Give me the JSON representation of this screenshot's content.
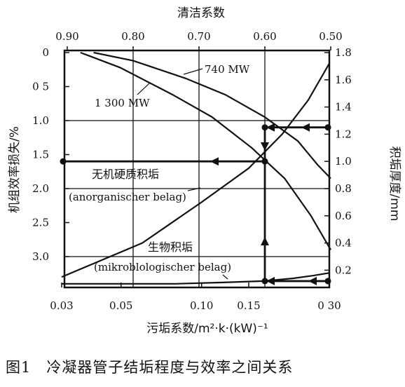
{
  "caption": "图1　冷凝器管子结垢程度与效率之间关系",
  "chart_data": {
    "type": "line",
    "title": "",
    "x_top": {
      "label": "清洁系数",
      "range": [
        0.9,
        0.5
      ],
      "ticks": [
        "0.90",
        "0.80",
        "0.70",
        "0.60",
        "0.50"
      ]
    },
    "x_bottom": {
      "label": "污垢系数/m²·k·(kW)⁻¹",
      "range": [
        0.03,
        0.3
      ],
      "ticks": [
        "0.03",
        "0.05",
        "0.10",
        "0.15",
        "0 30"
      ]
    },
    "y_left": {
      "label": "机组效率损失/%",
      "range": [
        0,
        3.4
      ],
      "ticks": [
        "0",
        "0 5",
        "1.0",
        "1.5",
        "2.0",
        "2.5",
        "3.0"
      ]
    },
    "y_right": {
      "label": "积垢厚度/mm",
      "range": [
        0.1,
        1.8
      ],
      "ticks": [
        "1.8",
        "1.6",
        "1.4",
        "1.2",
        "1.0",
        "0.8",
        "0.6",
        "0.4",
        "0.2"
      ]
    },
    "series": [
      {
        "name": "740 MW",
        "x_clean": [
          0.86,
          0.8,
          0.72,
          0.66,
          0.6,
          0.55,
          0.52,
          0.5
        ],
        "y_loss": [
          0.0,
          0.12,
          0.38,
          0.62,
          0.95,
          1.3,
          1.65,
          1.85
        ]
      },
      {
        "name": "1 300 MW",
        "x_clean": [
          0.88,
          0.82,
          0.74,
          0.68,
          0.62,
          0.57,
          0.53,
          0.5
        ],
        "y_loss": [
          0.0,
          0.22,
          0.62,
          0.95,
          1.4,
          1.85,
          2.4,
          2.9
        ]
      },
      {
        "name": "无机硬质积垢 (anorganischer belag)",
        "x_fouling": [
          0.03,
          0.06,
          0.1,
          0.15,
          0.2,
          0.25,
          0.3
        ],
        "y_thickness": [
          0.15,
          0.4,
          0.7,
          0.95,
          1.2,
          1.45,
          1.72
        ]
      },
      {
        "name": "生物积垢 (mikroblologischer belag)",
        "x_fouling": [
          0.03,
          0.08,
          0.12,
          0.17,
          0.22,
          0.26,
          0.3
        ],
        "y_thickness": [
          0.1,
          0.1,
          0.11,
          0.12,
          0.14,
          0.16,
          0.18
        ]
      }
    ],
    "annotations": [
      {
        "text": "740 MW"
      },
      {
        "text": "1 300 MW"
      },
      {
        "text": "无机硬质积垢"
      },
      {
        "text": "(anorganischer belag)"
      },
      {
        "text": "生物积垢"
      },
      {
        "text": "(mikroblologischer belag)"
      }
    ],
    "guide_lines": {
      "clean_factor": 0.6,
      "loss_percent": 1.6,
      "thickness_inorganic": 1.25,
      "thickness_bio": 0.12
    }
  }
}
